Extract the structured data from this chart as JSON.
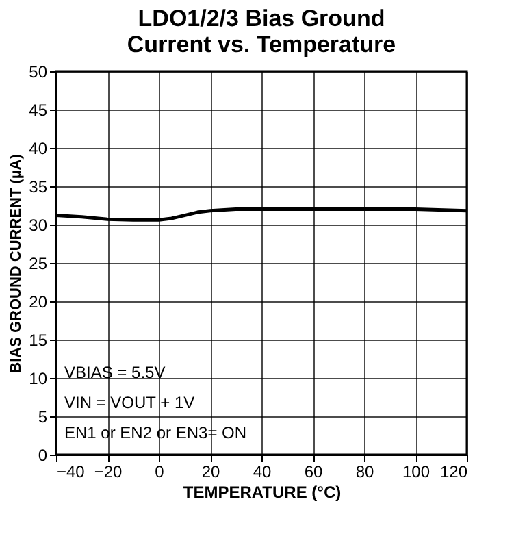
{
  "chart_data": {
    "type": "line",
    "title": [
      "LDO1/2/3 Bias Ground",
      "Current vs. Temperature"
    ],
    "xlabel": "TEMPERATURE (°C)",
    "ylabel": "BIAS GROUND CURRENT (µA)",
    "x": [
      -40,
      -30,
      -20,
      -10,
      0,
      5,
      10,
      15,
      20,
      30,
      40,
      60,
      80,
      100,
      120
    ],
    "series": [
      {
        "color": "#000000",
        "values": [
          31.2,
          31.0,
          30.7,
          30.6,
          30.6,
          30.8,
          31.2,
          31.6,
          31.8,
          32.0,
          32.0,
          32.0,
          32.0,
          32.0,
          31.8
        ]
      }
    ],
    "xlim": [
      -40,
      120
    ],
    "xticks": [
      -40,
      -20,
      0,
      20,
      40,
      60,
      80,
      100,
      120
    ],
    "ylim": [
      0,
      50
    ],
    "yticks": [
      0,
      5,
      10,
      15,
      20,
      25,
      30,
      35,
      40,
      45,
      50
    ],
    "grid": true,
    "marker": "none",
    "line_style": "solid",
    "annotations": [
      "VBIAS = 5.5V",
      "VIN = VOUT + 1V",
      "EN1 or EN2 or EN3= ON"
    ]
  }
}
